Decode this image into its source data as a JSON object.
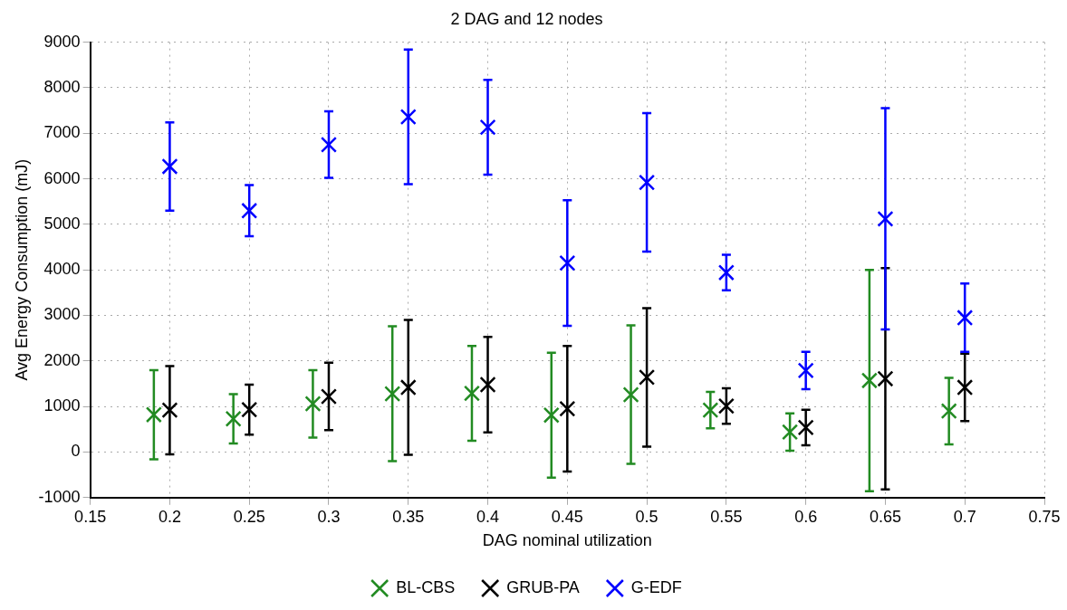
{
  "chart_data": {
    "type": "scatter",
    "title": "2 DAG and 12 nodes",
    "xlabel": "DAG nominal utilization",
    "ylabel": "Avg Energy Consumption (mJ)",
    "xlim": [
      0.15,
      0.75
    ],
    "xticks": [
      0.15,
      0.2,
      0.25,
      0.3,
      0.35,
      0.4,
      0.45,
      0.5,
      0.55,
      0.6,
      0.65,
      0.7,
      0.75
    ],
    "ylim": [
      -1000,
      9000
    ],
    "yticks": [
      -1000,
      0,
      1000,
      2000,
      3000,
      4000,
      5000,
      6000,
      7000,
      8000,
      9000
    ],
    "grid": true,
    "legend": "bottom",
    "marker": "cross",
    "series": [
      {
        "name": "BL-CBS",
        "color": "#228b22",
        "x": [
          0.19,
          0.24,
          0.29,
          0.34,
          0.39,
          0.44,
          0.49,
          0.54,
          0.59,
          0.64,
          0.69
        ],
        "values": [
          820,
          730,
          1060,
          1280,
          1290,
          810,
          1260,
          920,
          440,
          1570,
          900
        ],
        "errors": [
          980,
          540,
          740,
          1480,
          1040,
          1370,
          1520,
          400,
          410,
          2430,
          730
        ]
      },
      {
        "name": "GRUB-PA",
        "color": "#000000",
        "x": [
          0.2,
          0.25,
          0.3,
          0.35,
          0.4,
          0.45,
          0.5,
          0.55,
          0.6,
          0.65,
          0.7
        ],
        "values": [
          920,
          930,
          1220,
          1420,
          1480,
          950,
          1640,
          1010,
          540,
          1610,
          1420
        ],
        "errors": [
          970,
          550,
          740,
          1480,
          1050,
          1380,
          1520,
          390,
          390,
          2430,
          740
        ]
      },
      {
        "name": "G-EDF",
        "color": "#0000ff",
        "x": [
          0.2,
          0.25,
          0.3,
          0.35,
          0.4,
          0.45,
          0.5,
          0.55,
          0.6,
          0.65,
          0.7
        ],
        "values": [
          6270,
          5300,
          6750,
          7360,
          7130,
          4150,
          5920,
          3940,
          1790,
          5120,
          2950
        ],
        "errors": [
          970,
          560,
          730,
          1480,
          1040,
          1380,
          1520,
          390,
          410,
          2430,
          750
        ]
      }
    ]
  }
}
